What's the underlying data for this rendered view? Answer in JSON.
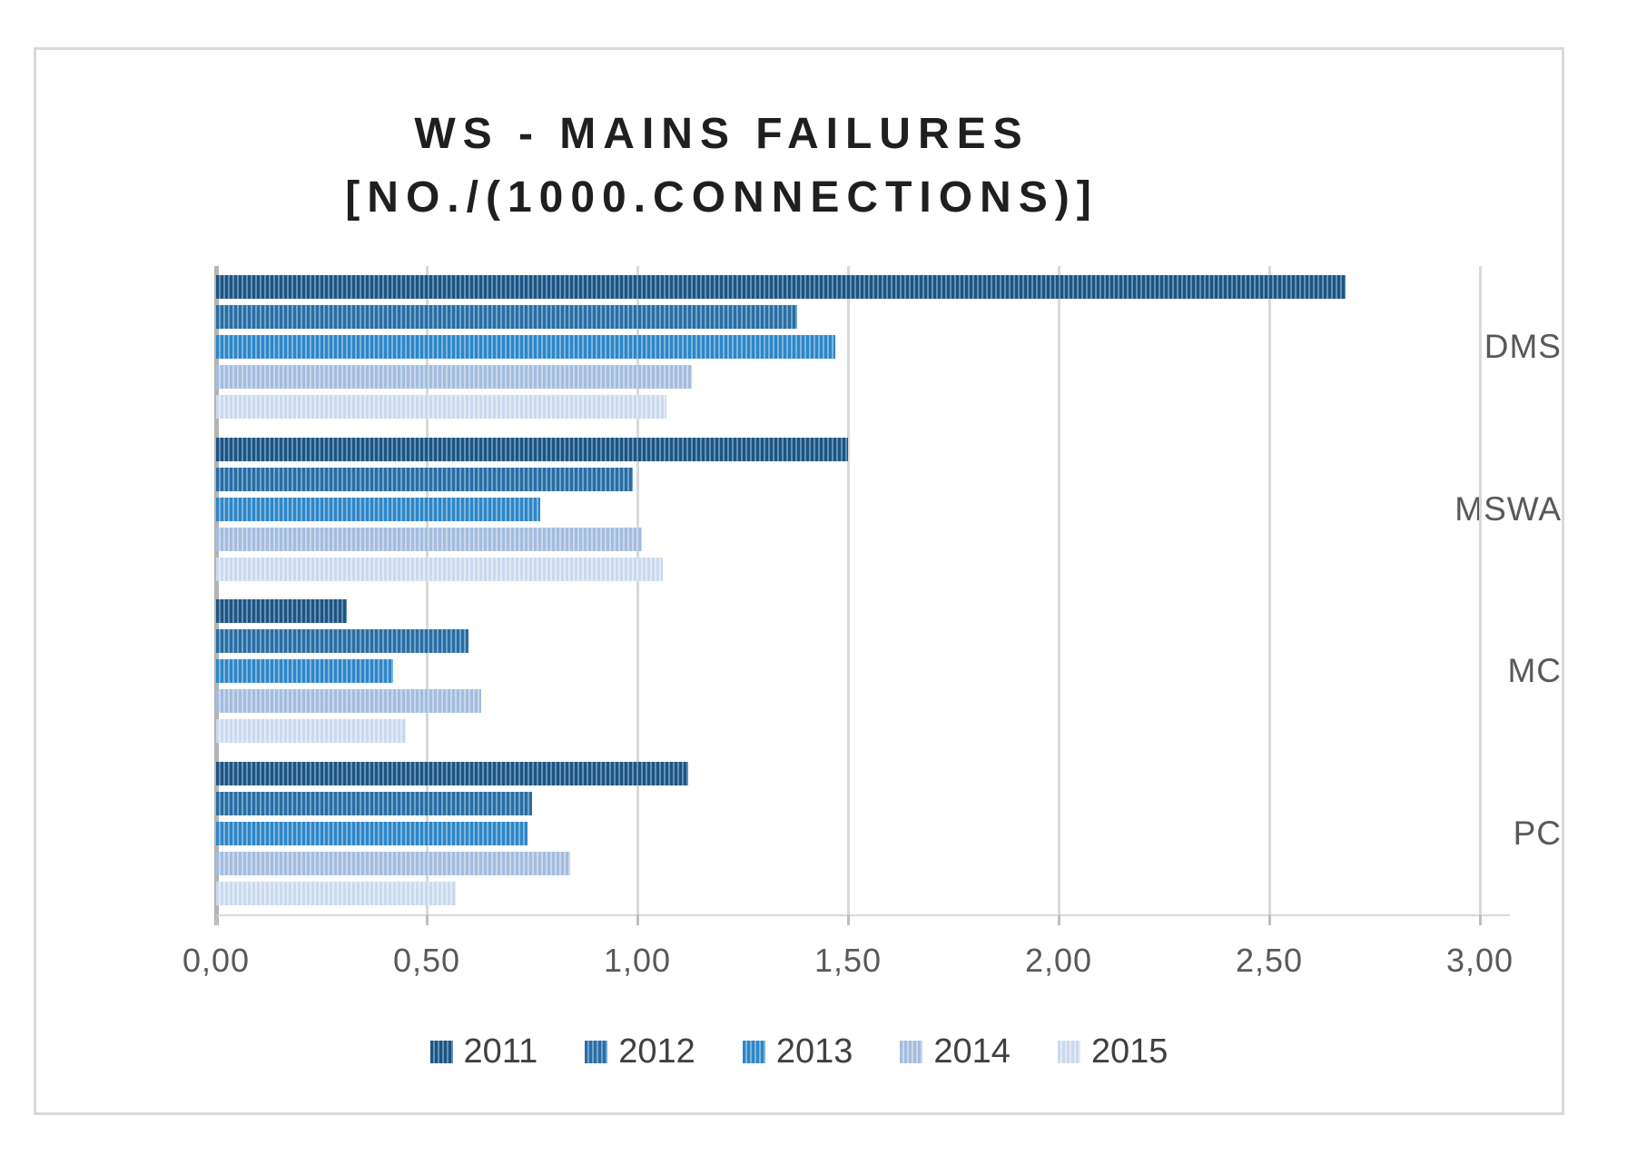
{
  "title": {
    "line1": "WS - MAINS FAILURES",
    "line2": "[NO./(1000.CONNECTIONS)]"
  },
  "chart_data": {
    "type": "bar",
    "orientation": "horizontal",
    "title": "WS - MAINS FAILURES [NO./(1000.CONNECTIONS)]",
    "xlabel": "",
    "ylabel": "",
    "xlim": [
      0,
      3.0
    ],
    "x_tick_values": [
      0,
      0.5,
      1.0,
      1.5,
      2.0,
      2.5,
      3.0
    ],
    "x_tick_labels": [
      "0,00",
      "0,50",
      "1,00",
      "1,50",
      "2,00",
      "2,50",
      "3,00"
    ],
    "grid": true,
    "legend_position": "bottom",
    "categories": [
      "DMS",
      "MSWA",
      "MC",
      "PC"
    ],
    "series": [
      {
        "name": "2011",
        "color": "#1F5380",
        "stripe": "#6293B8",
        "values": [
          2.68,
          1.5,
          0.31,
          1.12
        ]
      },
      {
        "name": "2012",
        "color": "#2B6CA3",
        "stripe": "#6FA5CC",
        "values": [
          1.38,
          0.99,
          0.6,
          0.75
        ]
      },
      {
        "name": "2013",
        "color": "#2E86C6",
        "stripe": "#7CB6E0",
        "values": [
          1.47,
          0.77,
          0.42,
          0.74
        ]
      },
      {
        "name": "2014",
        "color": "#A4BDDE",
        "stripe": "#C9D8EC",
        "values": [
          1.13,
          1.01,
          0.63,
          0.84
        ]
      },
      {
        "name": "2015",
        "color": "#CBD9ED",
        "stripe": "#E3EBF6",
        "values": [
          1.07,
          1.06,
          0.45,
          0.57
        ]
      }
    ],
    "colors": {
      "gridline": "#d9d9d9",
      "axis_line": "#b3b3b3",
      "axis_text": "#595959",
      "legend_text": "#404040",
      "title_text": "#1f1f1f",
      "chart_border": "#d9d9d9"
    }
  }
}
